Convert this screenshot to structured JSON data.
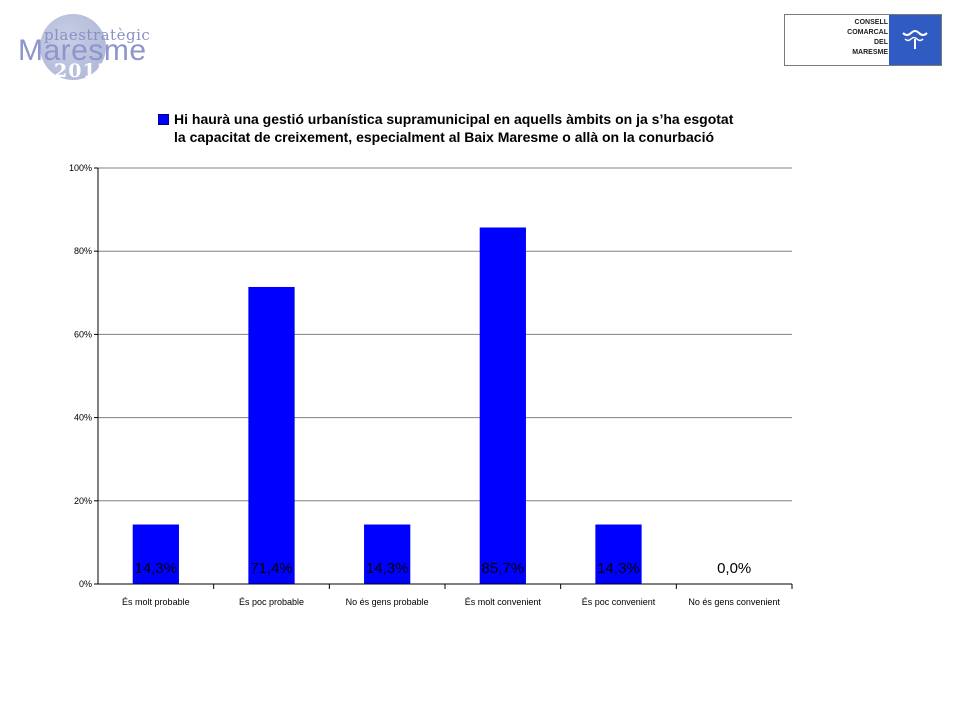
{
  "logo": {
    "small_text": "plaestratègic",
    "main_text": "Maresme",
    "year": "2015"
  },
  "council": {
    "lines": [
      "CONSELL",
      "COMARCAL",
      "DEL",
      "MARESME"
    ],
    "emblem": "council-emblem-icon"
  },
  "colors": {
    "bar": "#0000ff",
    "grid": "#808080",
    "background": "#ffffff"
  },
  "chart_data": {
    "type": "bar",
    "categories": [
      "És molt probable",
      "És poc probable",
      "No és gens probable",
      "És molt convenient",
      "És poc convenient",
      "No és gens convenient"
    ],
    "series": [
      {
        "name": "Hi haurà una gestió urbanística supramunicipal en aquells àmbits on ja s’ha esgotat la capacitat de creixement, especialment al Baix Maresme o allà on la conurbació",
        "values": [
          14.3,
          71.4,
          14.3,
          85.7,
          14.3,
          0.0
        ]
      }
    ],
    "data_labels": [
      "14,3%",
      "71,4%",
      "14,3%",
      "85,7%",
      "14,3%",
      "0,0%"
    ],
    "y_ticks": [
      "0%",
      "20%",
      "40%",
      "60%",
      "80%",
      "100%"
    ],
    "ylim": [
      0,
      100
    ],
    "legend_lines": [
      "Hi haurà una gestió urbanística supramunicipal en aquells àmbits on ja s’ha esgotat",
      "la capacitat de creixement, especialment al Baix Maresme o allà on la conurbació"
    ],
    "legend_position": "top",
    "grid": true
  }
}
